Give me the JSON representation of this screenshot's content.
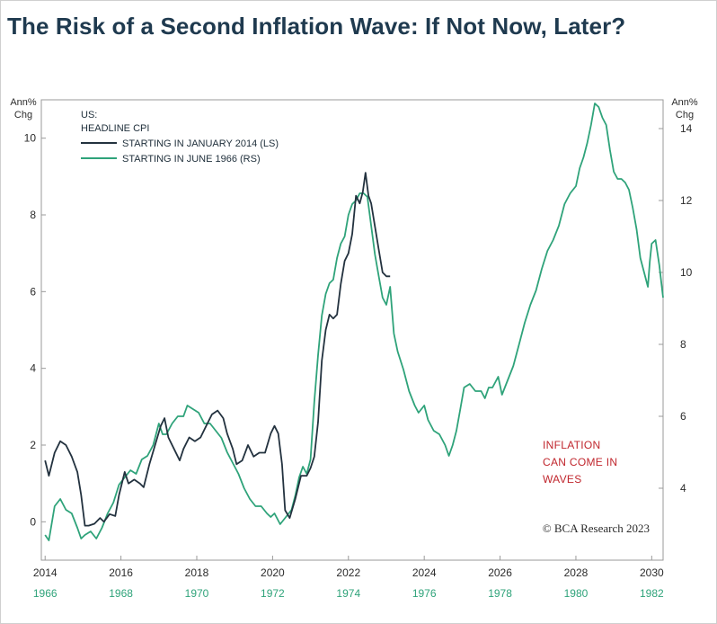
{
  "title": "The Risk of a Second Inflation Wave: If Not Now, Later?",
  "colors": {
    "dark": "#23323f",
    "green": "#2fa37a",
    "annotation": "#c0262d"
  },
  "chart_data": {
    "type": "line",
    "title": "The Risk of a Second Inflation Wave: If Not Now, Later?",
    "left_axis": {
      "unit_line1": "Ann%",
      "unit_line2": "Chg",
      "ylim": [
        -1,
        11
      ],
      "ticks": [
        0,
        2,
        4,
        6,
        8,
        10
      ]
    },
    "right_axis": {
      "unit_line1": "Ann%",
      "unit_line2": "Chg",
      "ylim": [
        2,
        14.8
      ],
      "ticks": [
        4,
        6,
        8,
        10,
        12,
        14
      ]
    },
    "xlim": [
      2013.9,
      2030.3
    ],
    "x_ticks": [
      {
        "value": 2014,
        "label": "2014",
        "label2": "1966"
      },
      {
        "value": 2016,
        "label": "2016",
        "label2": "1968"
      },
      {
        "value": 2018,
        "label": "2018",
        "label2": "1970"
      },
      {
        "value": 2020,
        "label": "2020",
        "label2": "1972"
      },
      {
        "value": 2022,
        "label": "2022",
        "label2": "1974"
      },
      {
        "value": 2024,
        "label": "2024",
        "label2": "1976"
      },
      {
        "value": 2026,
        "label": "2026",
        "label2": "1978"
      },
      {
        "value": 2028,
        "label": "2028",
        "label2": "1980"
      },
      {
        "value": 2030,
        "label": "2030",
        "label2": "1982"
      }
    ],
    "legend": {
      "heading1": "US:",
      "heading2": "HEADLINE CPI",
      "entries": [
        "STARTING IN JANUARY 2014 (LS)",
        "STARTING IN JUNE 1966 (RS)"
      ]
    },
    "annotation": [
      "INFLATION",
      "CAN COME IN",
      "WAVES"
    ],
    "credit": "© BCA Research 2023",
    "series": [
      {
        "name": "STARTING IN JANUARY 2014 (LS)",
        "axis": "left",
        "color": "#23323f",
        "points": [
          [
            2014.0,
            1.6
          ],
          [
            2014.1,
            1.2
          ],
          [
            2014.25,
            1.8
          ],
          [
            2014.4,
            2.1
          ],
          [
            2014.55,
            2.0
          ],
          [
            2014.7,
            1.7
          ],
          [
            2014.85,
            1.3
          ],
          [
            2014.95,
            0.7
          ],
          [
            2015.05,
            -0.1
          ],
          [
            2015.15,
            -0.1
          ],
          [
            2015.3,
            -0.05
          ],
          [
            2015.45,
            0.1
          ],
          [
            2015.55,
            0.0
          ],
          [
            2015.7,
            0.2
          ],
          [
            2015.85,
            0.15
          ],
          [
            2015.95,
            0.7
          ],
          [
            2016.1,
            1.3
          ],
          [
            2016.2,
            1.0
          ],
          [
            2016.35,
            1.1
          ],
          [
            2016.5,
            1.0
          ],
          [
            2016.6,
            0.9
          ],
          [
            2016.75,
            1.5
          ],
          [
            2016.9,
            2.0
          ],
          [
            2017.05,
            2.5
          ],
          [
            2017.15,
            2.7
          ],
          [
            2017.25,
            2.2
          ],
          [
            2017.4,
            1.9
          ],
          [
            2017.55,
            1.6
          ],
          [
            2017.65,
            1.9
          ],
          [
            2017.8,
            2.2
          ],
          [
            2017.95,
            2.1
          ],
          [
            2018.1,
            2.2
          ],
          [
            2018.25,
            2.5
          ],
          [
            2018.4,
            2.8
          ],
          [
            2018.55,
            2.9
          ],
          [
            2018.7,
            2.7
          ],
          [
            2018.8,
            2.3
          ],
          [
            2018.95,
            1.9
          ],
          [
            2019.05,
            1.5
          ],
          [
            2019.2,
            1.6
          ],
          [
            2019.35,
            2.0
          ],
          [
            2019.5,
            1.7
          ],
          [
            2019.65,
            1.8
          ],
          [
            2019.8,
            1.8
          ],
          [
            2019.95,
            2.3
          ],
          [
            2020.05,
            2.5
          ],
          [
            2020.15,
            2.3
          ],
          [
            2020.25,
            1.5
          ],
          [
            2020.33,
            0.3
          ],
          [
            2020.45,
            0.1
          ],
          [
            2020.6,
            0.6
          ],
          [
            2020.75,
            1.2
          ],
          [
            2020.9,
            1.2
          ],
          [
            2021.0,
            1.4
          ],
          [
            2021.1,
            1.7
          ],
          [
            2021.2,
            2.6
          ],
          [
            2021.3,
            4.2
          ],
          [
            2021.4,
            5.0
          ],
          [
            2021.5,
            5.4
          ],
          [
            2021.6,
            5.3
          ],
          [
            2021.7,
            5.4
          ],
          [
            2021.8,
            6.2
          ],
          [
            2021.9,
            6.8
          ],
          [
            2022.0,
            7.0
          ],
          [
            2022.1,
            7.5
          ],
          [
            2022.2,
            8.5
          ],
          [
            2022.3,
            8.3
          ],
          [
            2022.38,
            8.6
          ],
          [
            2022.45,
            9.1
          ],
          [
            2022.53,
            8.5
          ],
          [
            2022.6,
            8.3
          ],
          [
            2022.7,
            7.7
          ],
          [
            2022.8,
            7.1
          ],
          [
            2022.9,
            6.5
          ],
          [
            2023.0,
            6.4
          ],
          [
            2023.1,
            6.4
          ]
        ]
      },
      {
        "name": "STARTING IN JUNE 1966 (RS)",
        "axis": "right",
        "color": "#2fa37a",
        "points": [
          [
            2014.0,
            2.7
          ],
          [
            2014.1,
            2.55
          ],
          [
            2014.25,
            3.5
          ],
          [
            2014.4,
            3.7
          ],
          [
            2014.55,
            3.4
          ],
          [
            2014.7,
            3.3
          ],
          [
            2014.85,
            2.9
          ],
          [
            2014.95,
            2.6
          ],
          [
            2015.05,
            2.7
          ],
          [
            2015.2,
            2.8
          ],
          [
            2015.35,
            2.6
          ],
          [
            2015.5,
            2.9
          ],
          [
            2015.65,
            3.3
          ],
          [
            2015.8,
            3.6
          ],
          [
            2015.95,
            4.1
          ],
          [
            2016.1,
            4.3
          ],
          [
            2016.25,
            4.5
          ],
          [
            2016.4,
            4.4
          ],
          [
            2016.55,
            4.8
          ],
          [
            2016.7,
            4.9
          ],
          [
            2016.85,
            5.2
          ],
          [
            2017.0,
            5.8
          ],
          [
            2017.1,
            5.5
          ],
          [
            2017.2,
            5.5
          ],
          [
            2017.35,
            5.8
          ],
          [
            2017.5,
            6.0
          ],
          [
            2017.65,
            6.0
          ],
          [
            2017.75,
            6.3
          ],
          [
            2017.9,
            6.2
          ],
          [
            2018.05,
            6.1
          ],
          [
            2018.2,
            5.8
          ],
          [
            2018.35,
            5.8
          ],
          [
            2018.5,
            5.6
          ],
          [
            2018.65,
            5.4
          ],
          [
            2018.8,
            5.0
          ],
          [
            2018.95,
            4.7
          ],
          [
            2019.1,
            4.4
          ],
          [
            2019.25,
            4.0
          ],
          [
            2019.4,
            3.7
          ],
          [
            2019.55,
            3.5
          ],
          [
            2019.7,
            3.5
          ],
          [
            2019.85,
            3.3
          ],
          [
            2019.95,
            3.2
          ],
          [
            2020.05,
            3.3
          ],
          [
            2020.2,
            3.0
          ],
          [
            2020.35,
            3.2
          ],
          [
            2020.5,
            3.4
          ],
          [
            2020.6,
            3.8
          ],
          [
            2020.7,
            4.3
          ],
          [
            2020.8,
            4.6
          ],
          [
            2020.9,
            4.4
          ],
          [
            2021.0,
            4.8
          ],
          [
            2021.1,
            6.4
          ],
          [
            2021.2,
            7.7
          ],
          [
            2021.3,
            8.8
          ],
          [
            2021.4,
            9.4
          ],
          [
            2021.5,
            9.7
          ],
          [
            2021.6,
            9.8
          ],
          [
            2021.7,
            10.4
          ],
          [
            2021.8,
            10.8
          ],
          [
            2021.9,
            11.0
          ],
          [
            2022.0,
            11.6
          ],
          [
            2022.1,
            11.9
          ],
          [
            2022.2,
            12.0
          ],
          [
            2022.3,
            12.2
          ],
          [
            2022.4,
            12.2
          ],
          [
            2022.5,
            12.1
          ],
          [
            2022.6,
            11.3
          ],
          [
            2022.7,
            10.5
          ],
          [
            2022.8,
            9.9
          ],
          [
            2022.9,
            9.3
          ],
          [
            2023.0,
            9.1
          ],
          [
            2023.1,
            9.6
          ],
          [
            2023.2,
            8.3
          ],
          [
            2023.3,
            7.8
          ],
          [
            2023.45,
            7.3
          ],
          [
            2023.6,
            6.7
          ],
          [
            2023.75,
            6.3
          ],
          [
            2023.85,
            6.1
          ],
          [
            2024.0,
            6.3
          ],
          [
            2024.1,
            5.9
          ],
          [
            2024.25,
            5.6
          ],
          [
            2024.4,
            5.5
          ],
          [
            2024.55,
            5.2
          ],
          [
            2024.65,
            4.9
          ],
          [
            2024.75,
            5.2
          ],
          [
            2024.85,
            5.6
          ],
          [
            2024.95,
            6.2
          ],
          [
            2025.05,
            6.8
          ],
          [
            2025.2,
            6.9
          ],
          [
            2025.35,
            6.7
          ],
          [
            2025.5,
            6.7
          ],
          [
            2025.6,
            6.5
          ],
          [
            2025.7,
            6.8
          ],
          [
            2025.8,
            6.8
          ],
          [
            2025.95,
            7.1
          ],
          [
            2026.05,
            6.6
          ],
          [
            2026.2,
            7.0
          ],
          [
            2026.35,
            7.4
          ],
          [
            2026.5,
            8.0
          ],
          [
            2026.65,
            8.6
          ],
          [
            2026.8,
            9.1
          ],
          [
            2026.95,
            9.5
          ],
          [
            2027.1,
            10.1
          ],
          [
            2027.25,
            10.6
          ],
          [
            2027.4,
            10.9
          ],
          [
            2027.55,
            11.3
          ],
          [
            2027.7,
            11.9
          ],
          [
            2027.85,
            12.2
          ],
          [
            2028.0,
            12.4
          ],
          [
            2028.1,
            12.9
          ],
          [
            2028.2,
            13.2
          ],
          [
            2028.3,
            13.6
          ],
          [
            2028.4,
            14.1
          ],
          [
            2028.5,
            14.7
          ],
          [
            2028.6,
            14.6
          ],
          [
            2028.7,
            14.3
          ],
          [
            2028.8,
            14.1
          ],
          [
            2028.9,
            13.4
          ],
          [
            2029.0,
            12.8
          ],
          [
            2029.1,
            12.6
          ],
          [
            2029.2,
            12.6
          ],
          [
            2029.3,
            12.5
          ],
          [
            2029.4,
            12.3
          ],
          [
            2029.5,
            11.8
          ],
          [
            2029.6,
            11.2
          ],
          [
            2029.7,
            10.4
          ],
          [
            2029.8,
            10.0
          ],
          [
            2029.9,
            9.6
          ],
          [
            2029.95,
            10.3
          ],
          [
            2030.0,
            10.8
          ],
          [
            2030.1,
            10.9
          ],
          [
            2030.2,
            10.2
          ],
          [
            2030.3,
            9.3
          ]
        ]
      }
    ]
  }
}
